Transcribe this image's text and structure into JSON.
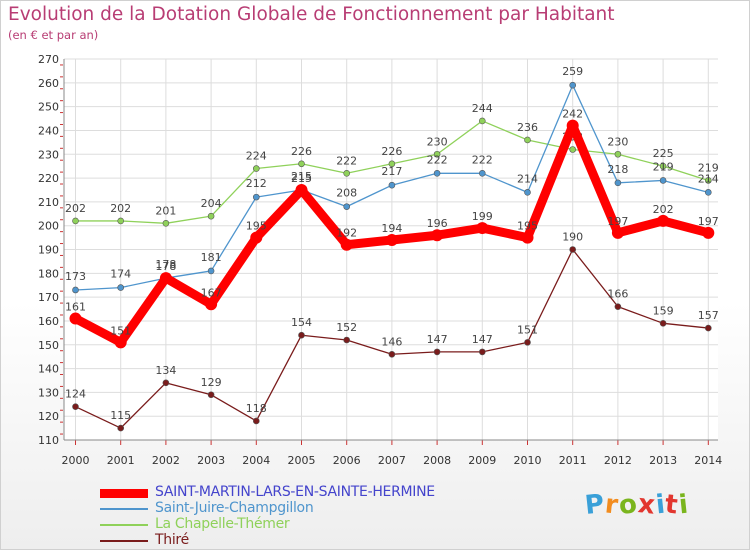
{
  "header": {
    "title": "Evolution de la Dotation Globale de Fonctionnement par Habitant",
    "subtitle": "(en € et par an)"
  },
  "logo": {
    "text": "Proxiti",
    "colors": [
      "#3aa0d8",
      "#f28c1e",
      "#7ab51d",
      "#e2362f",
      "#3aa0d8",
      "#e2362f",
      "#7ab51d"
    ]
  },
  "chart_data": {
    "type": "line",
    "title": "Evolution de la Dotation Globale de Fonctionnement par Habitant",
    "subtitle": "(en € et par an)",
    "x": [
      "2000",
      "2001",
      "2002",
      "2003",
      "2004",
      "2005",
      "2006",
      "2007",
      "2008",
      "2009",
      "2010",
      "2011",
      "2012",
      "2013",
      "2014"
    ],
    "ylim": [
      110,
      270
    ],
    "yticks": [
      110,
      120,
      130,
      140,
      150,
      160,
      170,
      180,
      190,
      200,
      210,
      220,
      230,
      240,
      250,
      260,
      270
    ],
    "grid": true,
    "legend_position": "bottom-left",
    "series": [
      {
        "name": "SAINT-MARTIN-LARS-EN-SAINTE-HERMINE",
        "color": "#ff0000",
        "label_color": "#4444cc",
        "values": [
          161,
          151,
          178,
          167,
          195,
          215,
          192,
          194,
          196,
          199,
          195,
          242,
          197,
          202,
          197
        ]
      },
      {
        "name": "Saint-Juire-Champgillon",
        "color": "#4f95cd",
        "label_color": "#4f95cd",
        "values": [
          173,
          174,
          178,
          181,
          212,
          215,
          208,
          217,
          222,
          222,
          214,
          259,
          218,
          219,
          214
        ]
      },
      {
        "name": "La Chapelle-Thémer",
        "color": "#8fd15a",
        "label_color": "#8fd15a",
        "values": [
          202,
          202,
          201,
          204,
          224,
          226,
          222,
          226,
          230,
          244,
          236,
          232,
          230,
          225,
          219
        ]
      },
      {
        "name": "Thiré",
        "color": "#7a1c1c",
        "label_color": "#7a1c1c",
        "values": [
          124,
          115,
          134,
          129,
          118,
          154,
          152,
          146,
          147,
          147,
          151,
          190,
          166,
          159,
          157
        ]
      }
    ]
  }
}
